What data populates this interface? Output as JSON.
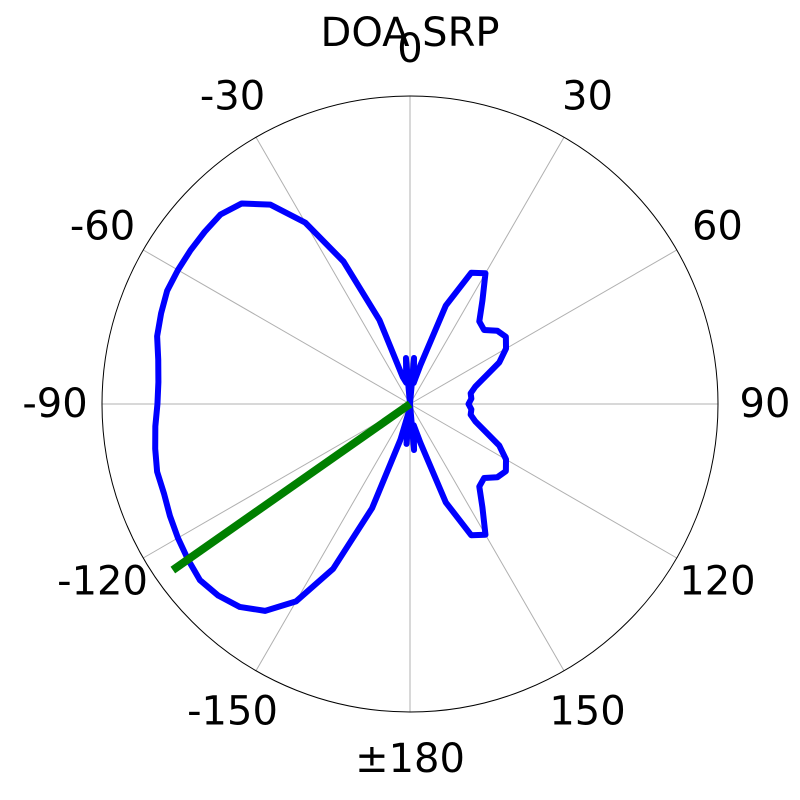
{
  "chart_data": {
    "type": "polar-line",
    "title": "DOA SRP",
    "angle_zero_location": "top",
    "angle_direction": "clockwise",
    "angular_ticks": [
      {
        "angle": 0,
        "label": "0"
      },
      {
        "angle": 30,
        "label": "30"
      },
      {
        "angle": 60,
        "label": "60"
      },
      {
        "angle": 90,
        "label": "90"
      },
      {
        "angle": 120,
        "label": "120"
      },
      {
        "angle": 150,
        "label": "150"
      },
      {
        "angle": 180,
        "label": "±180"
      },
      {
        "angle": -150,
        "label": "-150"
      },
      {
        "angle": -120,
        "label": "-120"
      },
      {
        "angle": -90,
        "label": "-90"
      },
      {
        "angle": -60,
        "label": "-60"
      },
      {
        "angle": -30,
        "label": "-30"
      }
    ],
    "rlim": [
      0,
      1
    ],
    "radial_tick_labels": "none",
    "grid": true,
    "series": [
      {
        "color": "#0000ff",
        "points": [
          [
            -180,
            0.0
          ],
          [
            -175,
            0.13
          ],
          [
            -170,
            0.03
          ],
          [
            -165,
            0.12
          ],
          [
            -160,
            0.36
          ],
          [
            -155,
            0.59
          ],
          [
            -150,
            0.74
          ],
          [
            -145,
            0.82
          ],
          [
            -140,
            0.86
          ],
          [
            -135,
            0.88
          ],
          [
            -130,
            0.89
          ],
          [
            -125,
            0.88
          ],
          [
            -120,
            0.87
          ],
          [
            -115,
            0.86
          ],
          [
            -110,
            0.85
          ],
          [
            -105,
            0.85
          ],
          [
            -100,
            0.84
          ],
          [
            -95,
            0.83
          ],
          [
            -90,
            0.82
          ],
          [
            -85,
            0.82
          ],
          [
            -80,
            0.83
          ],
          [
            -75,
            0.85
          ],
          [
            -70,
            0.86
          ],
          [
            -65,
            0.87
          ],
          [
            -60,
            0.87
          ],
          [
            -55,
            0.87
          ],
          [
            -50,
            0.87
          ],
          [
            -45,
            0.87
          ],
          [
            -40,
            0.85
          ],
          [
            -35,
            0.79
          ],
          [
            -30,
            0.68
          ],
          [
            -25,
            0.51
          ],
          [
            -20,
            0.29
          ],
          [
            -15,
            0.09
          ],
          [
            -10,
            0.07
          ],
          [
            -5,
            0.15
          ],
          [
            0,
            0.0
          ],
          [
            5,
            0.15
          ],
          [
            10,
            0.07
          ],
          [
            15,
            0.13
          ],
          [
            20,
            0.34
          ],
          [
            25,
            0.47
          ],
          [
            30,
            0.49
          ],
          [
            35,
            0.41
          ],
          [
            40,
            0.35
          ],
          [
            45,
            0.34
          ],
          [
            50,
            0.37
          ],
          [
            55,
            0.38
          ],
          [
            60,
            0.36
          ],
          [
            65,
            0.32
          ],
          [
            70,
            0.26
          ],
          [
            75,
            0.22
          ],
          [
            80,
            0.2
          ],
          [
            85,
            0.2
          ],
          [
            90,
            0.19
          ],
          [
            95,
            0.2
          ],
          [
            100,
            0.2
          ],
          [
            105,
            0.22
          ],
          [
            110,
            0.26
          ],
          [
            115,
            0.32
          ],
          [
            120,
            0.36
          ],
          [
            125,
            0.38
          ],
          [
            130,
            0.37
          ],
          [
            135,
            0.34
          ],
          [
            140,
            0.35
          ],
          [
            145,
            0.41
          ],
          [
            150,
            0.49
          ],
          [
            155,
            0.47
          ],
          [
            160,
            0.34
          ],
          [
            165,
            0.13
          ],
          [
            170,
            0.07
          ],
          [
            175,
            0.15
          ],
          [
            180,
            0.0
          ]
        ]
      },
      {
        "color": "#008000",
        "points": [
          [
            -125,
            0.0
          ],
          [
            -125,
            0.94
          ]
        ]
      }
    ]
  }
}
